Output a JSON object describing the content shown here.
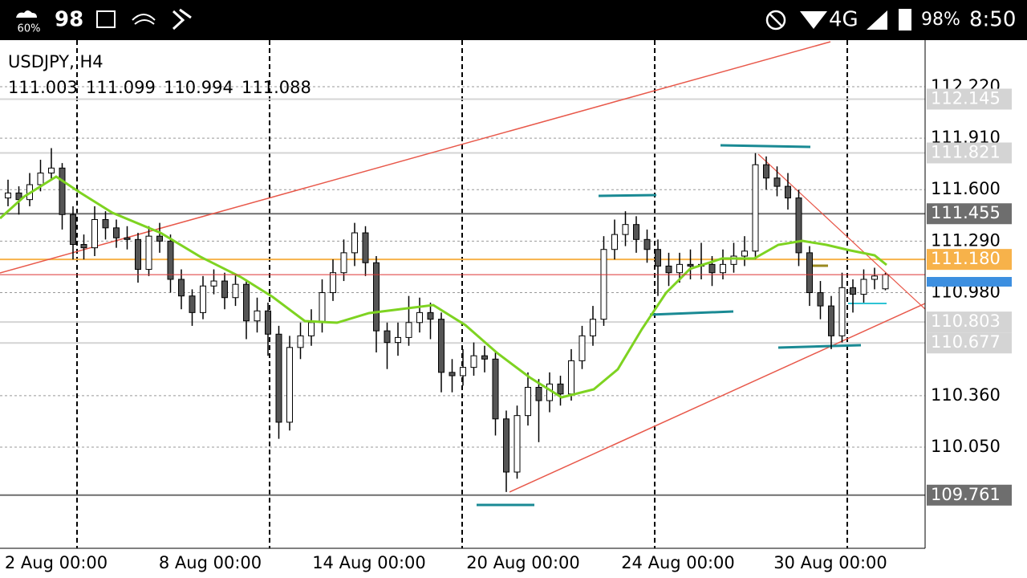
{
  "status_bar": {
    "weather": "60%",
    "notice": "98",
    "network": "4G",
    "battery": "98%",
    "time": "8:50"
  },
  "chart_data": {
    "type": "candlestick",
    "title": "USDJPY, H4",
    "ylim": [
      109.441,
      112.5
    ],
    "yticks": [
      {
        "value": 112.22,
        "label": "112.220"
      },
      {
        "value": 111.91,
        "label": "111.910"
      },
      {
        "value": 111.6,
        "label": "111.600"
      },
      {
        "value": 111.29,
        "label": "111.290"
      },
      {
        "value": 110.98,
        "label": "110.980"
      },
      {
        "value": 110.36,
        "label": "110.360"
      },
      {
        "value": 110.05,
        "label": "110.050"
      }
    ],
    "levels": [
      {
        "value": 112.145,
        "label": "112.145",
        "color": "#d4d4d4"
      },
      {
        "value": 111.821,
        "label": "111.821",
        "color": "#d4d4d4"
      },
      {
        "value": 111.455,
        "label": "111.455",
        "color": "#6e6e6e"
      },
      {
        "value": 111.18,
        "label": "111.180",
        "color": "#f7b24a"
      },
      {
        "value": 110.803,
        "label": "110.803",
        "color": "#d4d4d4"
      },
      {
        "value": 110.677,
        "label": "110.677",
        "color": "#d4d4d4"
      },
      {
        "value": 109.761,
        "label": "109.761",
        "color": "#6e6e6e"
      }
    ],
    "categories": [
      "2 Aug 00:00",
      "8 Aug 00:00",
      "14 Aug 00:00",
      "20 Aug 00:00",
      "24 Aug 00:00",
      "30 Aug 00:00"
    ],
    "candles": [
      [
        111.55,
        111.66,
        111.5,
        111.58
      ],
      [
        111.58,
        111.62,
        111.45,
        111.54
      ],
      [
        111.54,
        111.7,
        111.5,
        111.63
      ],
      [
        111.63,
        111.78,
        111.59,
        111.7
      ],
      [
        111.7,
        111.85,
        111.66,
        111.73
      ],
      [
        111.73,
        111.76,
        111.36,
        111.45
      ],
      [
        111.45,
        111.5,
        111.18,
        111.27
      ],
      [
        111.27,
        111.33,
        111.18,
        111.25
      ],
      [
        111.25,
        111.5,
        111.2,
        111.42
      ],
      [
        111.42,
        111.47,
        111.3,
        111.37
      ],
      [
        111.37,
        111.42,
        111.25,
        111.31
      ],
      [
        111.31,
        111.38,
        111.24,
        111.3
      ],
      [
        111.3,
        111.34,
        111.04,
        111.12
      ],
      [
        111.12,
        111.38,
        111.08,
        111.32
      ],
      [
        111.32,
        111.4,
        111.22,
        111.29
      ],
      [
        111.29,
        111.33,
        110.98,
        111.06
      ],
      [
        111.06,
        111.12,
        110.88,
        110.96
      ],
      [
        110.96,
        111,
        110.78,
        110.86
      ],
      [
        110.86,
        111.08,
        110.82,
        111.02
      ],
      [
        111.02,
        111.12,
        110.97,
        111.05
      ],
      [
        111.05,
        111.1,
        110.88,
        110.95
      ],
      [
        110.95,
        111.09,
        110.9,
        111.03
      ],
      [
        111.03,
        111.06,
        110.7,
        110.81
      ],
      [
        110.81,
        110.95,
        110.74,
        110.87
      ],
      [
        110.87,
        110.92,
        110.6,
        110.73
      ],
      [
        110.73,
        110.78,
        110.1,
        110.2
      ],
      [
        110.2,
        110.72,
        110.15,
        110.65
      ],
      [
        110.65,
        110.8,
        110.58,
        110.72
      ],
      [
        110.72,
        110.88,
        110.66,
        110.8
      ],
      [
        110.8,
        111.06,
        110.74,
        110.98
      ],
      [
        110.98,
        111.18,
        110.93,
        111.1
      ],
      [
        111.1,
        111.3,
        111.05,
        111.22
      ],
      [
        111.22,
        111.4,
        111.14,
        111.34
      ],
      [
        111.34,
        111.38,
        111.08,
        111.16
      ],
      [
        111.16,
        111.2,
        110.62,
        110.75
      ],
      [
        110.75,
        110.8,
        110.52,
        110.68
      ],
      [
        110.68,
        110.8,
        110.6,
        110.71
      ],
      [
        110.71,
        110.96,
        110.66,
        110.8
      ],
      [
        110.8,
        110.95,
        110.74,
        110.86
      ],
      [
        110.86,
        110.92,
        110.7,
        110.82
      ],
      [
        110.82,
        110.86,
        110.38,
        110.5
      ],
      [
        110.5,
        110.58,
        110.38,
        110.48
      ],
      [
        110.48,
        110.64,
        110.42,
        110.53
      ],
      [
        110.53,
        110.68,
        110.48,
        110.6
      ],
      [
        110.6,
        110.66,
        110.5,
        110.58
      ],
      [
        110.58,
        110.62,
        110.12,
        110.22
      ],
      [
        110.22,
        110.27,
        109.78,
        109.9
      ],
      [
        109.9,
        110.3,
        109.86,
        110.24
      ],
      [
        110.24,
        110.5,
        110.18,
        110.41
      ],
      [
        110.41,
        110.46,
        110.08,
        110.33
      ],
      [
        110.33,
        110.5,
        110.26,
        110.43
      ],
      [
        110.43,
        110.48,
        110.3,
        110.37
      ],
      [
        110.37,
        110.64,
        110.33,
        110.57
      ],
      [
        110.57,
        110.78,
        110.52,
        110.72
      ],
      [
        110.72,
        110.9,
        110.66,
        110.82
      ],
      [
        110.82,
        111.32,
        110.78,
        111.24
      ],
      [
        111.24,
        111.42,
        111.18,
        111.33
      ],
      [
        111.33,
        111.47,
        111.26,
        111.39
      ],
      [
        111.39,
        111.44,
        111.22,
        111.3
      ],
      [
        111.3,
        111.36,
        111.16,
        111.24
      ],
      [
        111.24,
        111.3,
        110.96,
        111.14
      ],
      [
        111.14,
        111.22,
        111.02,
        111.1
      ],
      [
        111.1,
        111.22,
        111.04,
        111.15
      ],
      [
        111.15,
        111.24,
        111.06,
        111.14
      ],
      [
        111.14,
        111.28,
        111.06,
        111.15
      ],
      [
        111.15,
        111.2,
        111.02,
        111.1
      ],
      [
        111.1,
        111.24,
        111.06,
        111.15
      ],
      [
        111.15,
        111.28,
        111.1,
        111.2
      ],
      [
        111.2,
        111.32,
        111.14,
        111.23
      ],
      [
        111.23,
        111.82,
        111.18,
        111.75
      ],
      [
        111.75,
        111.8,
        111.6,
        111.67
      ],
      [
        111.67,
        111.74,
        111.56,
        111.62
      ],
      [
        111.62,
        111.7,
        111.48,
        111.55
      ],
      [
        111.55,
        111.6,
        111.14,
        111.22
      ],
      [
        111.22,
        111.26,
        110.9,
        110.98
      ],
      [
        110.98,
        111.05,
        110.82,
        110.9
      ],
      [
        110.9,
        110.96,
        110.64,
        110.72
      ],
      [
        110.72,
        111.1,
        110.68,
        111.01
      ],
      [
        111.01,
        111.06,
        110.86,
        110.97
      ],
      [
        110.97,
        111.12,
        110.92,
        111.06
      ],
      [
        111.06,
        111.13,
        111,
        111.08
      ],
      [
        111.003,
        111.099,
        110.994,
        111.088
      ]
    ],
    "up_color": "#ffffff",
    "down_color": "#555555",
    "grid": true
  }
}
